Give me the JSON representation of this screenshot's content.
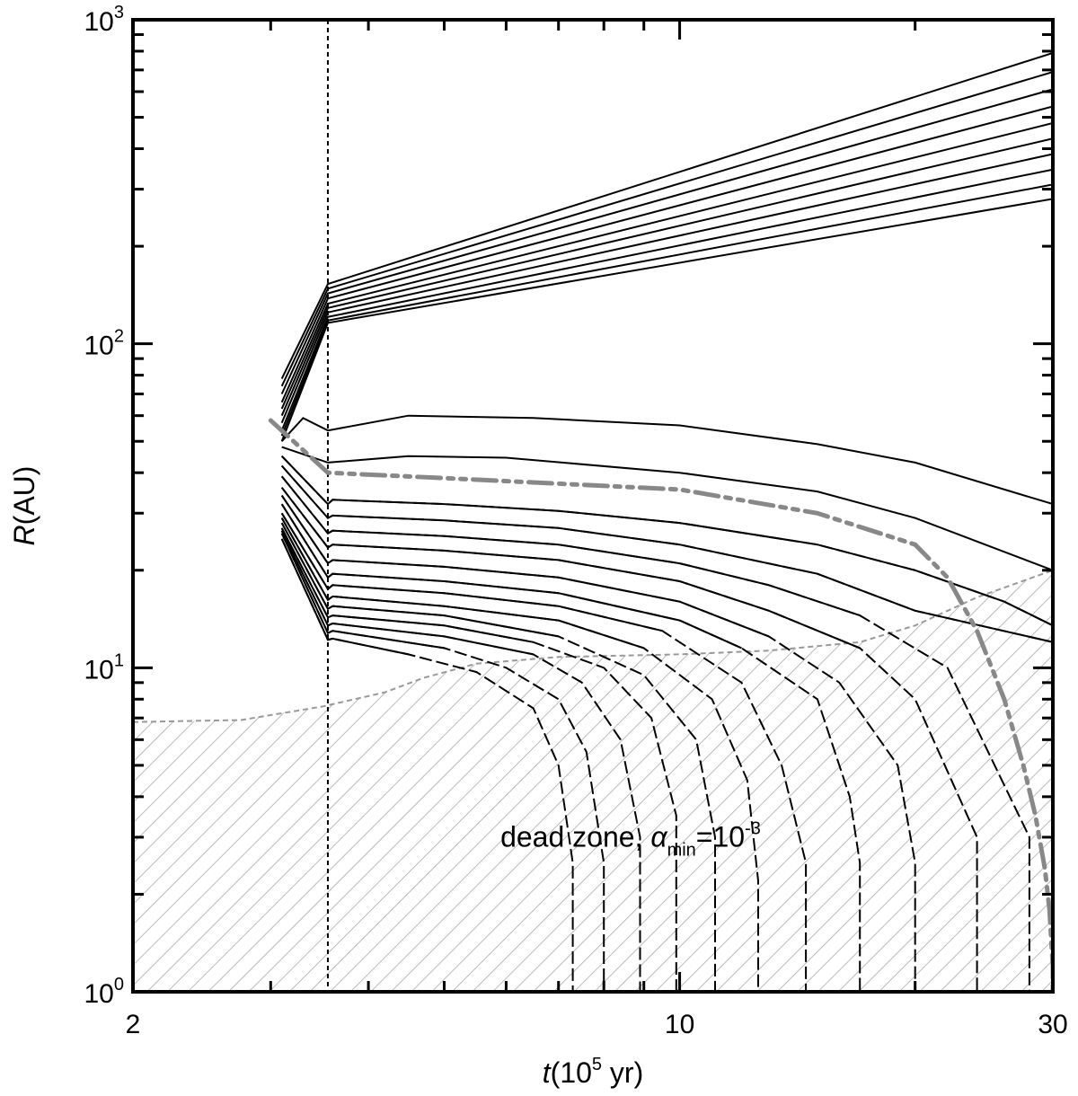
{
  "chart_data": {
    "type": "line",
    "xscale": "log",
    "yscale": "log",
    "xlim": [
      2,
      30
    ],
    "ylim": [
      1,
      1000
    ],
    "xlabel": {
      "italic": "t",
      "rest": "(10",
      "sup": "5",
      "after": " yr)"
    },
    "ylabel": {
      "italic": "R",
      "rest": "(AU)"
    },
    "x_ticks": [
      {
        "value": 2,
        "label": "2"
      },
      {
        "value": 10,
        "label": "10"
      },
      {
        "value": 30,
        "label": "30"
      }
    ],
    "y_ticks": [
      {
        "value": 1,
        "base": "10",
        "exp": "0"
      },
      {
        "value": 10,
        "base": "10",
        "exp": "1"
      },
      {
        "value": 100,
        "base": "10",
        "exp": "2"
      },
      {
        "value": 1000,
        "base": "10",
        "exp": "3"
      }
    ],
    "annotation": {
      "text": "dead zone, ",
      "symbol": "α",
      "sub": "min",
      "eq": "=10",
      "sup": "-3",
      "x": 5.9,
      "y": 2.8
    },
    "vertical_line_x": 3.55,
    "dead_zone_boundary": {
      "x": [
        2,
        2.75,
        3.5,
        4.2,
        4.7,
        5.5,
        7,
        10,
        13,
        17,
        20,
        24,
        30
      ],
      "y": [
        6.8,
        6.9,
        7.6,
        8.4,
        9.3,
        10.3,
        10.8,
        11.0,
        11.3,
        12.0,
        13.5,
        16.5,
        20
      ]
    },
    "upper_curves": [
      {
        "x": [
          3.1,
          3.55,
          30
        ],
        "y": [
          78,
          153,
          790
        ]
      },
      {
        "x": [
          3.1,
          3.55,
          30
        ],
        "y": [
          74,
          148,
          690
        ]
      },
      {
        "x": [
          3.1,
          3.55,
          30
        ],
        "y": [
          70,
          143,
          610
        ]
      },
      {
        "x": [
          3.1,
          3.55,
          30
        ],
        "y": [
          66,
          138,
          540
        ]
      },
      {
        "x": [
          3.1,
          3.55,
          30
        ],
        "y": [
          63,
          133,
          480
        ]
      },
      {
        "x": [
          3.1,
          3.55,
          30
        ],
        "y": [
          60,
          129,
          430
        ]
      },
      {
        "x": [
          3.1,
          3.55,
          30
        ],
        "y": [
          57,
          125,
          385
        ]
      },
      {
        "x": [
          3.1,
          3.55,
          30
        ],
        "y": [
          54,
          121,
          345
        ]
      },
      {
        "x": [
          3.1,
          3.55,
          30
        ],
        "y": [
          52,
          118,
          310
        ]
      },
      {
        "x": [
          3.1,
          3.55,
          30
        ],
        "y": [
          50,
          116,
          280
        ]
      }
    ],
    "middle_curves": [
      {
        "x": [
          3.1,
          3.3,
          3.55,
          4.5,
          6.5,
          10,
          15,
          20,
          30
        ],
        "y": [
          50,
          59,
          54,
          60,
          59,
          56,
          49,
          43,
          32
        ]
      },
      {
        "x": [
          3.1,
          3.55,
          4.5,
          6,
          10,
          15,
          20,
          30
        ],
        "y": [
          48,
          43,
          45,
          44.5,
          40,
          35,
          29,
          20
        ]
      }
    ],
    "lower_curves": [
      {
        "x": [
          3.1,
          3.55,
          3.6,
          5,
          7,
          10,
          15,
          20,
          26,
          30
        ],
        "y": [
          45,
          32,
          33,
          32,
          30.5,
          28,
          24,
          20,
          16,
          13.5
        ]
      },
      {
        "x": [
          3.1,
          3.55,
          3.6,
          5,
          7,
          10,
          15,
          20,
          30,
          30
        ],
        "y": [
          42,
          29,
          29.5,
          28.5,
          27,
          24,
          19.5,
          15,
          12,
          11.5
        ]
      },
      {
        "x": [
          3.1,
          3.55,
          3.6,
          5,
          7,
          10,
          13,
          17,
          22,
          28,
          28
        ],
        "y": [
          39,
          26,
          26.5,
          25.5,
          24,
          21,
          18,
          14.5,
          10,
          3,
          1
        ]
      },
      {
        "x": [
          3.1,
          3.55,
          3.6,
          5,
          7,
          10,
          13,
          17,
          20,
          24,
          24
        ],
        "y": [
          36,
          23.5,
          24,
          23,
          21.5,
          18.5,
          15,
          11.5,
          8,
          3,
          1
        ]
      },
      {
        "x": [
          3.1,
          3.55,
          3.6,
          5,
          7,
          10,
          13,
          16,
          19,
          20,
          20
        ],
        "y": [
          34,
          21,
          21.5,
          20.5,
          19,
          16,
          12.5,
          9,
          5,
          2.5,
          1
        ]
      },
      {
        "x": [
          3.1,
          3.55,
          3.6,
          5,
          7,
          10,
          12,
          15,
          16.5,
          17,
          17
        ],
        "y": [
          32,
          19,
          19.5,
          18.5,
          17,
          14,
          11.5,
          8,
          4,
          2.5,
          1
        ]
      },
      {
        "x": [
          3.1,
          3.55,
          3.6,
          5,
          7,
          9.5,
          12,
          13.5,
          14.5,
          14.5
        ],
        "y": [
          30,
          17.5,
          18,
          17,
          15.5,
          13,
          9,
          5,
          2.5,
          1
        ]
      },
      {
        "x": [
          3.1,
          3.55,
          3.6,
          5,
          7,
          9,
          11,
          12.2,
          12.6,
          12.6
        ],
        "y": [
          29,
          16.2,
          16.6,
          15.5,
          14,
          11.5,
          8,
          4.5,
          2.2,
          1
        ]
      },
      {
        "x": [
          3.1,
          3.55,
          3.6,
          5,
          7,
          9,
          10.5,
          11.1,
          11.1
        ],
        "y": [
          28,
          15.2,
          15.5,
          14.5,
          12.5,
          9.5,
          6,
          3,
          1
        ]
      },
      {
        "x": [
          3.1,
          3.55,
          3.6,
          5,
          6.5,
          8,
          9.2,
          9.9,
          9.9
        ],
        "y": [
          27,
          14.3,
          14.5,
          13.5,
          12,
          10,
          7,
          3.5,
          1
        ]
      },
      {
        "x": [
          3.1,
          3.55,
          3.6,
          5,
          6.5,
          7.5,
          8.4,
          8.9,
          8.9
        ],
        "y": [
          26.5,
          13.5,
          13.7,
          12.5,
          11,
          9,
          6,
          3,
          1
        ]
      },
      {
        "x": [
          3.1,
          3.55,
          3.6,
          5,
          6,
          7,
          7.6,
          8.0,
          8.0
        ],
        "y": [
          26,
          12.8,
          13,
          11.5,
          10,
          8,
          5.5,
          2.5,
          1
        ]
      },
      {
        "x": [
          3.1,
          3.55,
          3.6,
          4.5,
          5.5,
          6.5,
          7.0,
          7.3,
          7.3
        ],
        "y": [
          25,
          12.2,
          12.3,
          11,
          9.7,
          7.5,
          5,
          2.5,
          1
        ]
      }
    ],
    "gray_curve": {
      "x": [
        3.0,
        3.55,
        5,
        10,
        15,
        20,
        22,
        24,
        26,
        27.5,
        28.5,
        29.3,
        29.7,
        30,
        30
      ],
      "y": [
        58,
        40,
        38.5,
        35.5,
        30,
        24,
        19,
        13,
        8,
        5,
        3.5,
        2.4,
        1.8,
        1.2,
        1
      ]
    },
    "colors": {
      "curves": "#000000",
      "gray_curve": "#888888",
      "boundary": "#999999",
      "hatch": "#aaaaaa",
      "frame": "#000000"
    }
  }
}
